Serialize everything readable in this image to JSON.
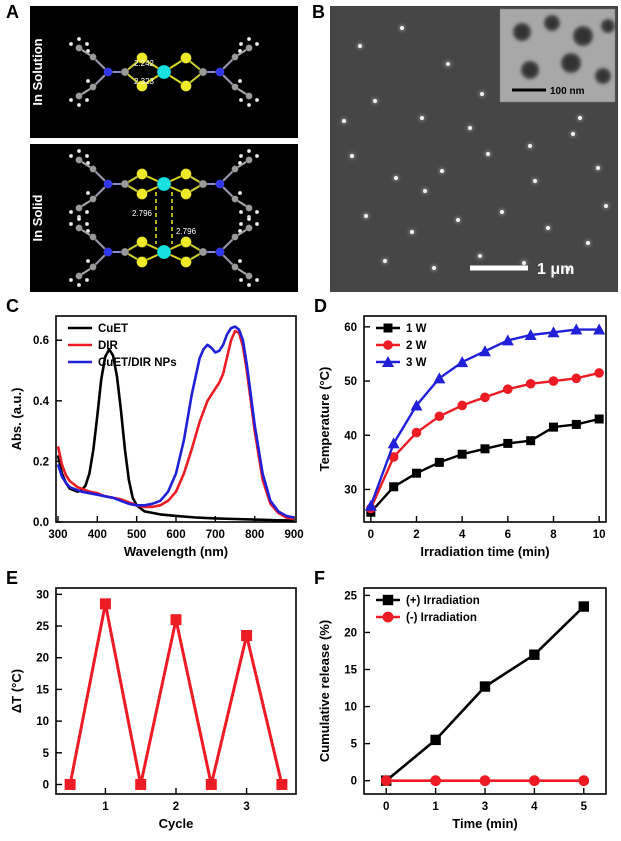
{
  "panels": {
    "a": {
      "label": "A",
      "solution_label": "In Solution",
      "solid_label": "In Solid",
      "bond_lengths_solution": [
        "2.242",
        "2.323"
      ],
      "bond_length_solid": "2.796"
    },
    "b": {
      "label": "B",
      "scale_bar": "1 μm",
      "inset_scale_bar": "100 nm"
    },
    "c": {
      "label": "C"
    },
    "d": {
      "label": "D"
    },
    "e": {
      "label": "E"
    },
    "f": {
      "label": "F"
    }
  },
  "colors": {
    "black": "#000000",
    "red": "#ed1c24",
    "blue": "#2020d8",
    "copper_cyan": "#18e0e0",
    "sulfur_yellow": "#f0e92a",
    "nitrogen_blue": "#3038e8",
    "carbon_gray": "#9a9a9a",
    "hydrogen_white": "#ececec"
  },
  "chart_data": [
    {
      "id": "C",
      "type": "line",
      "title": "",
      "xlabel": "Wavelength (nm)",
      "ylabel": "Abs. (a.u.)",
      "xlim": [
        295,
        905
      ],
      "ylim": [
        0,
        0.68
      ],
      "xticks": [
        300,
        400,
        500,
        600,
        700,
        800,
        900
      ],
      "yticks": [
        0,
        0.2,
        0.4,
        0.6
      ],
      "xtick_decimals": 0,
      "ytick_decimals": 1,
      "show_legend": true,
      "legend_position": "top-left",
      "series": [
        {
          "name": "CuET",
          "color": "#000000",
          "marker": "none",
          "width": 2.6,
          "x": [
            300,
            310,
            320,
            330,
            340,
            350,
            360,
            370,
            380,
            390,
            400,
            410,
            420,
            430,
            440,
            450,
            460,
            470,
            480,
            490,
            500,
            520,
            540,
            560,
            600,
            650,
            700,
            750,
            800,
            850,
            900
          ],
          "y": [
            0.22,
            0.16,
            0.13,
            0.11,
            0.105,
            0.1,
            0.105,
            0.12,
            0.16,
            0.24,
            0.35,
            0.47,
            0.545,
            0.57,
            0.55,
            0.48,
            0.37,
            0.24,
            0.14,
            0.08,
            0.055,
            0.035,
            0.03,
            0.025,
            0.02,
            0.015,
            0.012,
            0.01,
            0.008,
            0.006,
            0.005
          ]
        },
        {
          "name": "DIR",
          "color": "#ed1c24",
          "marker": "none",
          "width": 2.6,
          "x": [
            300,
            310,
            320,
            330,
            340,
            350,
            360,
            380,
            400,
            420,
            440,
            460,
            480,
            500,
            520,
            540,
            560,
            580,
            600,
            620,
            640,
            660,
            680,
            700,
            710,
            720,
            730,
            740,
            750,
            760,
            770,
            780,
            790,
            800,
            820,
            840,
            860,
            880,
            900
          ],
          "y": [
            0.25,
            0.19,
            0.155,
            0.135,
            0.125,
            0.115,
            0.11,
            0.1,
            0.095,
            0.085,
            0.08,
            0.075,
            0.065,
            0.055,
            0.05,
            0.05,
            0.055,
            0.07,
            0.1,
            0.16,
            0.24,
            0.33,
            0.4,
            0.44,
            0.46,
            0.49,
            0.545,
            0.6,
            0.63,
            0.625,
            0.58,
            0.5,
            0.4,
            0.3,
            0.14,
            0.06,
            0.03,
            0.015,
            0.01
          ]
        },
        {
          "name": "CuET/DIR NPs",
          "color": "#2020d8",
          "marker": "none",
          "width": 2.6,
          "x": [
            300,
            310,
            320,
            330,
            340,
            350,
            360,
            380,
            400,
            420,
            440,
            460,
            480,
            500,
            520,
            540,
            560,
            580,
            600,
            620,
            640,
            660,
            670,
            680,
            690,
            700,
            710,
            720,
            730,
            740,
            750,
            760,
            770,
            780,
            790,
            800,
            820,
            840,
            860,
            880,
            900
          ],
          "y": [
            0.19,
            0.15,
            0.13,
            0.115,
            0.11,
            0.105,
            0.1,
            0.095,
            0.09,
            0.085,
            0.08,
            0.07,
            0.06,
            0.055,
            0.055,
            0.06,
            0.07,
            0.1,
            0.16,
            0.27,
            0.42,
            0.54,
            0.57,
            0.585,
            0.575,
            0.56,
            0.565,
            0.585,
            0.62,
            0.64,
            0.645,
            0.635,
            0.6,
            0.52,
            0.42,
            0.32,
            0.16,
            0.07,
            0.035,
            0.02,
            0.015
          ]
        }
      ]
    },
    {
      "id": "D",
      "type": "line",
      "title": "",
      "xlabel": "Irradiation time (min)",
      "ylabel": "Temperature (°C)",
      "xlim": [
        -0.3,
        10.3
      ],
      "ylim": [
        24,
        62
      ],
      "xticks": [
        0,
        2,
        4,
        6,
        8,
        10
      ],
      "yticks": [
        30,
        40,
        50,
        60
      ],
      "xtick_decimals": 0,
      "ytick_decimals": 0,
      "show_legend": true,
      "legend_position": "top-left",
      "series": [
        {
          "name": "1 W",
          "color": "#000000",
          "marker": "square",
          "msize": 4.5,
          "width": 2.4,
          "x": [
            0,
            1,
            2,
            3,
            4,
            5,
            6,
            7,
            8,
            9,
            10
          ],
          "y": [
            25.8,
            30.5,
            33,
            35,
            36.5,
            37.5,
            38.5,
            39,
            41.5,
            42,
            43
          ]
        },
        {
          "name": "2 W",
          "color": "#ed1c24",
          "marker": "circle",
          "msize": 4.8,
          "width": 2.4,
          "x": [
            0,
            1,
            2,
            3,
            4,
            5,
            6,
            7,
            8,
            9,
            10
          ],
          "y": [
            26.5,
            36,
            40.5,
            43.5,
            45.5,
            47,
            48.5,
            49.5,
            50,
            50.5,
            51.5
          ]
        },
        {
          "name": "3 W",
          "color": "#2020d8",
          "marker": "triangle",
          "msize": 5,
          "width": 2.4,
          "x": [
            0,
            1,
            2,
            3,
            4,
            5,
            6,
            7,
            8,
            9,
            10
          ],
          "y": [
            27,
            38.5,
            45.5,
            50.5,
            53.5,
            55.5,
            57.5,
            58.5,
            59,
            59.5,
            59.5
          ]
        }
      ]
    },
    {
      "id": "E",
      "type": "line",
      "title": "",
      "xlabel": "Cycle",
      "ylabel": "ΔT (°C)",
      "xlim": [
        0.3,
        3.7
      ],
      "ylim": [
        -1.5,
        31
      ],
      "xticks": [
        1,
        2,
        3
      ],
      "yticks": [
        0,
        5,
        10,
        15,
        20,
        25,
        30
      ],
      "xtick_decimals": 0,
      "ytick_decimals": 0,
      "show_legend": false,
      "series": [
        {
          "name": "ΔT",
          "color": "#ed1c24",
          "marker": "square",
          "msize": 5.5,
          "width": 3,
          "x": [
            0.5,
            1,
            1.5,
            2,
            2.5,
            3,
            3.5
          ],
          "y": [
            0,
            28.5,
            0,
            26,
            0,
            23.5,
            0
          ]
        }
      ]
    },
    {
      "id": "F",
      "type": "line",
      "title": "",
      "xlabel": "Time (min)",
      "ylabel": "Cumulative release (%)",
      "categories": [
        "0",
        "1",
        "3",
        "4",
        "5"
      ],
      "ylim": [
        -1.8,
        26
      ],
      "yticks": [
        0,
        5,
        10,
        15,
        20,
        25
      ],
      "ytick_decimals": 0,
      "show_legend": true,
      "legend_position": "top-left",
      "series": [
        {
          "name": "(+) Irradiation",
          "color": "#000000",
          "marker": "square",
          "msize": 5.2,
          "width": 2.6,
          "y": [
            0,
            5.5,
            12.7,
            17,
            23.5
          ]
        },
        {
          "name": "(-) Irradiation",
          "color": "#ed1c24",
          "marker": "circle",
          "msize": 5.4,
          "width": 2.6,
          "y": [
            0,
            0,
            0,
            0,
            0
          ]
        }
      ]
    }
  ]
}
